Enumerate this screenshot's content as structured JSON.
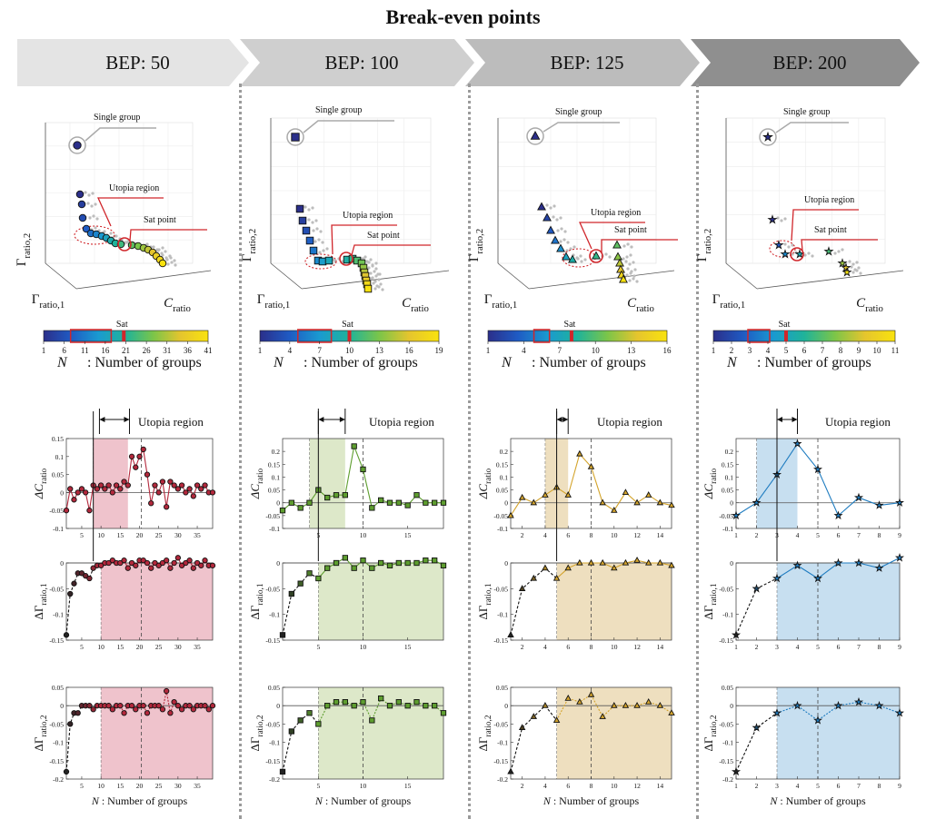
{
  "page_title": "Break-even points",
  "stages": [
    {
      "label": "BEP: 50"
    },
    {
      "label": "BEP: 100"
    },
    {
      "label": "BEP: 125"
    },
    {
      "label": "BEP: 200"
    }
  ],
  "colors": {
    "chevron": [
      "#e4e4e4",
      "#cfcfcf",
      "#bcbcbc",
      "#8f8f8f"
    ],
    "panel_series": [
      "#b3283c",
      "#5e9e2f",
      "#d4a42c",
      "#1f7cc0"
    ],
    "panel_shade": [
      "#efc3cc",
      "#dde8c9",
      "#eedfbf",
      "#c7dff0"
    ],
    "colormap": [
      "#2b2f8a",
      "#1f5bc4",
      "#1a9ad0",
      "#1fb39a",
      "#7bc549",
      "#e5c52e",
      "#f9e20e"
    ]
  },
  "common_text": {
    "single_group": "Single group",
    "utopia_region": "Utopia region",
    "sat_point": "Sat point",
    "sat": "Sat",
    "n_caption": "N",
    "n_caption_rest": ": Number of groups",
    "axis_c_ratio": "C",
    "axis_c_ratio_sub": "ratio",
    "axis_gamma1": "Γ",
    "axis_gamma1_sub": "ratio,1",
    "axis_gamma2": "Γ",
    "axis_gamma2_sub": "ratio,2",
    "utopia_header": "Utopia region",
    "delta_c": "ΔC",
    "delta_c_sub": "ratio",
    "delta_g1": "ΔΓ",
    "delta_g1_sub": "ratio,1",
    "delta_g2": "ΔΓ",
    "delta_g2_sub": "ratio,2",
    "xaxis_n": "N",
    "xaxis_rest": ": Number of groups"
  },
  "chart_data": [
    {
      "type": "line",
      "title": "BEP: 50",
      "xlabel": "N : Number of groups",
      "n_max": 39,
      "xticks": [
        5,
        10,
        15,
        20,
        25,
        30,
        35
      ],
      "colorbar_ticks": [
        1,
        6,
        11,
        16,
        21,
        26,
        31,
        36,
        41
      ],
      "colorbar_range": [
        1,
        41
      ],
      "sat_n": 20.5,
      "utopia_range": [
        8,
        17
      ],
      "shade_range_g": [
        10,
        39
      ],
      "series": [
        {
          "name": "ΔC_ratio",
          "ylim": [
            -0.1,
            0.15
          ],
          "yticks": [
            -0.1,
            -0.05,
            0,
            0.05,
            0.1,
            0.15
          ],
          "values": [
            -0.05,
            0.01,
            -0.02,
            0.0,
            0.01,
            0.0,
            -0.05,
            0.02,
            0.01,
            0.02,
            0.01,
            0.02,
            0.0,
            0.02,
            0.01,
            0.03,
            0.02,
            0.1,
            0.07,
            0.1,
            0.12,
            0.05,
            -0.03,
            0.02,
            0.0,
            0.03,
            -0.04,
            0.03,
            0.02,
            0.01,
            0.02,
            0.0,
            0.01,
            -0.01,
            0.02,
            0.01,
            0.02,
            0.0,
            0.0
          ]
        },
        {
          "name": "ΔΓ_ratio,1",
          "ylim": [
            -0.15,
            0.0
          ],
          "yticks": [
            -0.15,
            -0.1,
            -0.05,
            0
          ],
          "values": [
            -0.14,
            -0.06,
            -0.04,
            -0.02,
            -0.02,
            -0.025,
            -0.03,
            -0.01,
            -0.005,
            -0.005,
            0.0,
            0.0,
            0.005,
            0.0,
            0.0,
            0.005,
            -0.01,
            0.0,
            -0.005,
            0.005,
            0.005,
            0.0,
            -0.01,
            0.0,
            -0.005,
            0.0,
            0.005,
            -0.01,
            0.0,
            0.01,
            -0.005,
            0.0,
            0.005,
            -0.01,
            0.0,
            -0.005,
            0.005,
            -0.005,
            -0.005
          ]
        },
        {
          "name": "ΔΓ_ratio,2",
          "ylim": [
            -0.2,
            0.05
          ],
          "yticks": [
            -0.2,
            -0.15,
            -0.1,
            -0.05,
            0,
            0.05
          ],
          "values": [
            -0.18,
            -0.05,
            -0.02,
            -0.02,
            0.0,
            0.0,
            0.0,
            -0.01,
            0.0,
            0.0,
            0.0,
            0.0,
            -0.01,
            0.0,
            0.0,
            -0.02,
            0.0,
            0.0,
            -0.01,
            0.0,
            0.0,
            -0.02,
            0.0,
            0.0,
            0.0,
            -0.01,
            0.04,
            -0.02,
            0.01,
            0.0,
            -0.01,
            0.0,
            0.0,
            -0.01,
            0.0,
            0.0,
            0.0,
            -0.01,
            0.0
          ]
        }
      ]
    },
    {
      "type": "line",
      "title": "BEP: 100",
      "xlabel": "N : Number of groups",
      "n_max": 19,
      "xticks": [
        5,
        10,
        15
      ],
      "colorbar_ticks": [
        1,
        4,
        7,
        10,
        13,
        16,
        19
      ],
      "colorbar_range": [
        1,
        19
      ],
      "sat_n": 10,
      "utopia_range": [
        5,
        8
      ],
      "shade_range_c": [
        4,
        8
      ],
      "shade_range_g": [
        5,
        19
      ],
      "series": [
        {
          "name": "ΔC_ratio",
          "ylim": [
            -0.1,
            0.25
          ],
          "yticks": [
            -0.1,
            -0.05,
            0,
            0.05,
            0.1,
            0.15,
            0.2
          ],
          "values": [
            -0.03,
            0.0,
            -0.02,
            0.0,
            0.05,
            0.02,
            0.03,
            0.03,
            0.22,
            0.13,
            -0.02,
            0.01,
            0.0,
            0.0,
            -0.01,
            0.03,
            0.0,
            0.0,
            0.0
          ]
        },
        {
          "name": "ΔΓ_ratio,1",
          "ylim": [
            -0.15,
            0.0
          ],
          "yticks": [
            -0.15,
            -0.1,
            -0.05,
            0
          ],
          "values": [
            -0.14,
            -0.06,
            -0.04,
            -0.02,
            -0.03,
            -0.01,
            0.0,
            0.01,
            -0.01,
            0.005,
            -0.01,
            0.0,
            -0.005,
            0.0,
            0.0,
            0.0,
            0.005,
            0.005,
            -0.005
          ]
        },
        {
          "name": "ΔΓ_ratio,2",
          "ylim": [
            -0.2,
            0.05
          ],
          "yticks": [
            -0.2,
            -0.15,
            -0.1,
            -0.05,
            0,
            0.05
          ],
          "values": [
            -0.18,
            -0.07,
            -0.04,
            -0.02,
            -0.05,
            0.0,
            0.01,
            0.01,
            0.0,
            0.01,
            -0.04,
            0.02,
            0.0,
            0.01,
            0.0,
            0.01,
            0.0,
            0.0,
            -0.02
          ]
        }
      ]
    },
    {
      "type": "line",
      "title": "BEP: 125",
      "xlabel": "N : Number of groups",
      "n_max": 15,
      "xticks": [
        2,
        4,
        6,
        8,
        10,
        12,
        14
      ],
      "colorbar_ticks": [
        1,
        4,
        7,
        10,
        13,
        16
      ],
      "colorbar_range": [
        1,
        16
      ],
      "sat_n": 8,
      "utopia_range": [
        5,
        6
      ],
      "shade_range_c": [
        4,
        6
      ],
      "shade_range_g": [
        5,
        15
      ],
      "series": [
        {
          "name": "ΔC_ratio",
          "ylim": [
            -0.1,
            0.25
          ],
          "yticks": [
            -0.1,
            -0.05,
            0,
            0.05,
            0.1,
            0.15,
            0.2
          ],
          "values": [
            -0.05,
            0.02,
            0.0,
            0.03,
            0.06,
            0.03,
            0.19,
            0.14,
            0.0,
            -0.03,
            0.04,
            0.0,
            0.03,
            0.0,
            -0.01
          ]
        },
        {
          "name": "ΔΓ_ratio,1",
          "ylim": [
            -0.15,
            0.0
          ],
          "yticks": [
            -0.15,
            -0.1,
            -0.05,
            0
          ],
          "values": [
            -0.14,
            -0.05,
            -0.03,
            -0.01,
            -0.03,
            -0.01,
            0.0,
            0.0,
            0.0,
            -0.01,
            0.0,
            0.005,
            0.0,
            0.0,
            -0.005
          ]
        },
        {
          "name": "ΔΓ_ratio,2",
          "ylim": [
            -0.2,
            0.05
          ],
          "yticks": [
            -0.2,
            -0.15,
            -0.1,
            -0.05,
            0,
            0.05
          ],
          "values": [
            -0.18,
            -0.06,
            -0.03,
            0.0,
            -0.04,
            0.02,
            0.01,
            0.03,
            -0.03,
            0.0,
            0.0,
            0.0,
            0.01,
            0.0,
            -0.02
          ]
        }
      ]
    },
    {
      "type": "line",
      "title": "BEP: 200",
      "xlabel": "N : Number of groups",
      "n_max": 9,
      "xticks": [
        1,
        2,
        3,
        4,
        5,
        6,
        7,
        8,
        9
      ],
      "colorbar_ticks": [
        1,
        2,
        3,
        4,
        5,
        6,
        7,
        8,
        9,
        10,
        11
      ],
      "colorbar_range": [
        1,
        11
      ],
      "sat_n": 5,
      "utopia_range": [
        3,
        4
      ],
      "shade_range_c": [
        2,
        4
      ],
      "shade_range_g": [
        3,
        9
      ],
      "series": [
        {
          "name": "ΔC_ratio",
          "ylim": [
            -0.1,
            0.25
          ],
          "yticks": [
            -0.1,
            -0.05,
            0,
            0.05,
            0.1,
            0.15,
            0.2
          ],
          "values": [
            -0.05,
            0.0,
            0.11,
            0.23,
            0.13,
            -0.05,
            0.02,
            -0.01,
            0.0
          ]
        },
        {
          "name": "ΔΓ_ratio,1",
          "ylim": [
            -0.15,
            0.0
          ],
          "yticks": [
            -0.15,
            -0.1,
            -0.05,
            0
          ],
          "values": [
            -0.14,
            -0.05,
            -0.03,
            -0.005,
            -0.03,
            0.0,
            0.0,
            -0.01,
            0.01
          ]
        },
        {
          "name": "ΔΓ_ratio,2",
          "ylim": [
            -0.2,
            0.05
          ],
          "yticks": [
            -0.2,
            -0.15,
            -0.1,
            -0.05,
            0,
            0.05
          ],
          "values": [
            -0.18,
            -0.06,
            -0.02,
            0.0,
            -0.04,
            0.0,
            0.01,
            0.0,
            -0.02
          ]
        }
      ]
    }
  ]
}
